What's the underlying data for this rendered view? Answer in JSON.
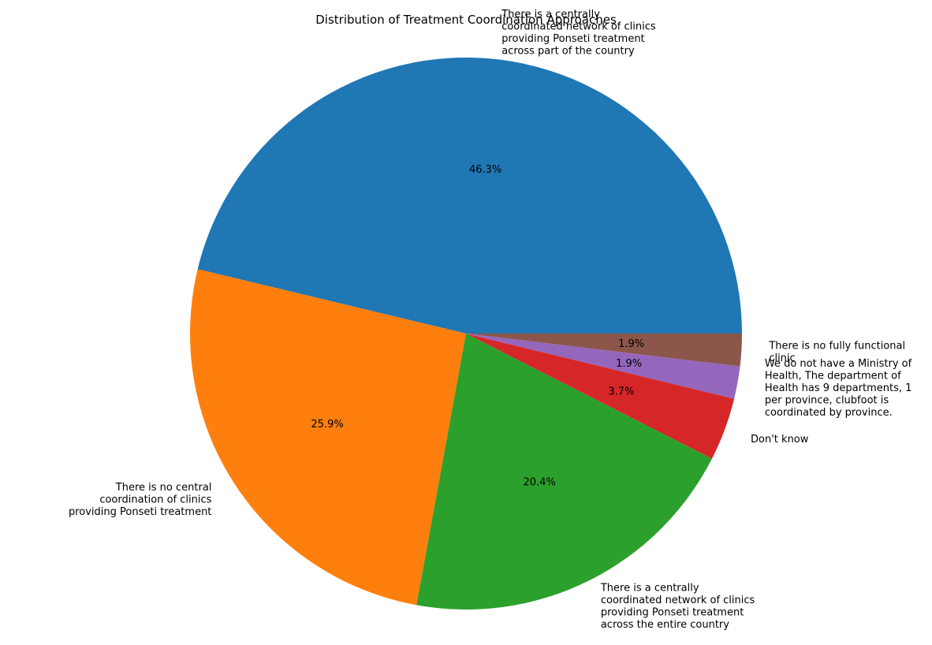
{
  "chart_data": {
    "type": "pie",
    "title": "Distribution of Treatment Coordination Approaches",
    "start_angle_deg": 0,
    "direction": "counterclockwise",
    "slices": [
      {
        "label_lines": [
          "There is a centrally",
          "coordinated network of clinics",
          "providing Ponseti treatment",
          "across part of the country"
        ],
        "value": 46.3,
        "pct_text": "46.3%",
        "color": "#1f77b4"
      },
      {
        "label_lines": [
          "There is no central",
          "coordination of clinics",
          "providing Ponseti treatment"
        ],
        "value": 25.9,
        "pct_text": "25.9%",
        "color": "#ff7f0e"
      },
      {
        "label_lines": [
          "There is a centrally",
          "coordinated network of clinics",
          "providing Ponseti treatment",
          "across the entire country"
        ],
        "value": 20.4,
        "pct_text": "20.4%",
        "color": "#2ca02c"
      },
      {
        "label_lines": [
          "Don't know"
        ],
        "value": 3.7,
        "pct_text": "3.7%",
        "color": "#d62728"
      },
      {
        "label_lines": [
          "We do not have a Ministry of",
          "Health, The department of",
          "Health has 9 departments, 1",
          "per province, clubfoot is",
          "coordinated by province."
        ],
        "value": 1.9,
        "pct_text": "1.9%",
        "color": "#9467bd"
      },
      {
        "label_lines": [
          "There is no fully functional",
          "clinic"
        ],
        "value": 1.9,
        "pct_text": "1.9%",
        "color": "#8c564b"
      }
    ]
  }
}
